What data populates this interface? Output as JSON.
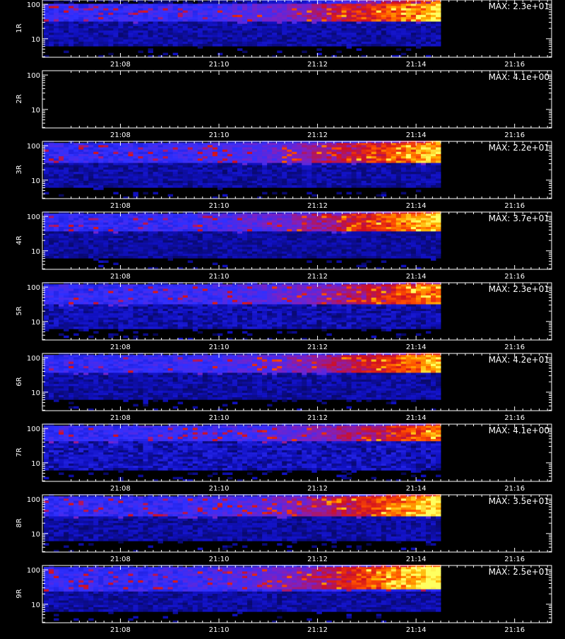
{
  "chart_data": [
    {
      "type": "heatmap",
      "ylabel": "1R",
      "max_label": "MAX: 2.3e+01",
      "max": 23,
      "xticks": [
        "21:08",
        "21:10",
        "21:12",
        "21:14",
        "21:16"
      ],
      "yticks": [
        "100",
        "10"
      ],
      "yscale": "log",
      "data_end": "21:14:30",
      "intensity": 1.0,
      "band": [
        30,
        90
      ],
      "noise": 0.35
    },
    {
      "type": "heatmap",
      "ylabel": "2R",
      "max_label": "MAX: 4.1e+00",
      "max": 4.1,
      "xticks": [
        "21:08",
        "21:10",
        "21:12",
        "21:14",
        "21:16"
      ],
      "yticks": [
        "100",
        "10"
      ],
      "yscale": "log",
      "data_end": null,
      "intensity": 0,
      "band": [
        30,
        90
      ],
      "noise": 0
    },
    {
      "type": "heatmap",
      "ylabel": "3R",
      "max_label": "MAX: 2.2e+01",
      "max": 22,
      "xticks": [
        "21:08",
        "21:10",
        "21:12",
        "21:14",
        "21:16"
      ],
      "yticks": [
        "100",
        "10"
      ],
      "yscale": "log",
      "data_end": "21:14:30",
      "intensity": 0.95,
      "band": [
        30,
        100
      ],
      "noise": 0.35
    },
    {
      "type": "heatmap",
      "ylabel": "4R",
      "max_label": "MAX: 3.7e+01",
      "max": 37,
      "xticks": [
        "21:08",
        "21:10",
        "21:12",
        "21:14",
        "21:16"
      ],
      "yticks": [
        "100",
        "10"
      ],
      "yscale": "log",
      "data_end": "21:14:30",
      "intensity": 1.0,
      "band": [
        35,
        100
      ],
      "noise": 0.3
    },
    {
      "type": "heatmap",
      "ylabel": "5R",
      "max_label": "MAX: 2.3e+01",
      "max": 23,
      "xticks": [
        "21:08",
        "21:10",
        "21:12",
        "21:14",
        "21:16"
      ],
      "yticks": [
        "100",
        "10"
      ],
      "yscale": "log",
      "data_end": "21:14:30",
      "intensity": 0.75,
      "band": [
        30,
        100
      ],
      "noise": 0.45
    },
    {
      "type": "heatmap",
      "ylabel": "6R",
      "max_label": "MAX: 4.2e+01",
      "max": 42,
      "xticks": [
        "21:08",
        "21:10",
        "21:12",
        "21:14",
        "21:16"
      ],
      "yticks": [
        "100",
        "10"
      ],
      "yscale": "log",
      "data_end": "21:14:30",
      "intensity": 0.9,
      "band": [
        35,
        100
      ],
      "noise": 0.35
    },
    {
      "type": "heatmap",
      "ylabel": "7R",
      "max_label": "MAX: 4.1e+00",
      "max": 4.1,
      "xticks": [
        "21:08",
        "21:10",
        "21:12",
        "21:14",
        "21:16"
      ],
      "yticks": [
        "100",
        "10"
      ],
      "yscale": "log",
      "data_end": "21:14:30",
      "intensity": 0.7,
      "band": [
        40,
        100
      ],
      "noise": 0.6
    },
    {
      "type": "heatmap",
      "ylabel": "8R",
      "max_label": "MAX: 3.5e+01",
      "max": 35,
      "xticks": [
        "21:08",
        "21:10",
        "21:12",
        "21:14",
        "21:16"
      ],
      "yticks": [
        "100",
        "10"
      ],
      "yscale": "log",
      "data_end": "21:14:30",
      "intensity": 1.0,
      "band": [
        30,
        100
      ],
      "noise": 0.35
    },
    {
      "type": "heatmap",
      "ylabel": "9R",
      "max_label": "MAX: 2.5e+01",
      "max": 25,
      "xticks": [
        "21:08",
        "21:10",
        "21:12",
        "21:14",
        "21:16"
      ],
      "yticks": [
        "100",
        "10"
      ],
      "yscale": "log",
      "data_end": "21:14:30",
      "intensity": 1.15,
      "band": [
        25,
        100
      ],
      "noise": 0.35
    }
  ],
  "colors": {
    "background": "#000000",
    "axis": "#ffffff",
    "colormap": [
      "#000000",
      "#1010c0",
      "#3030ff",
      "#8020c0",
      "#d01020",
      "#ff5000",
      "#ffb000",
      "#ffff60"
    ]
  }
}
